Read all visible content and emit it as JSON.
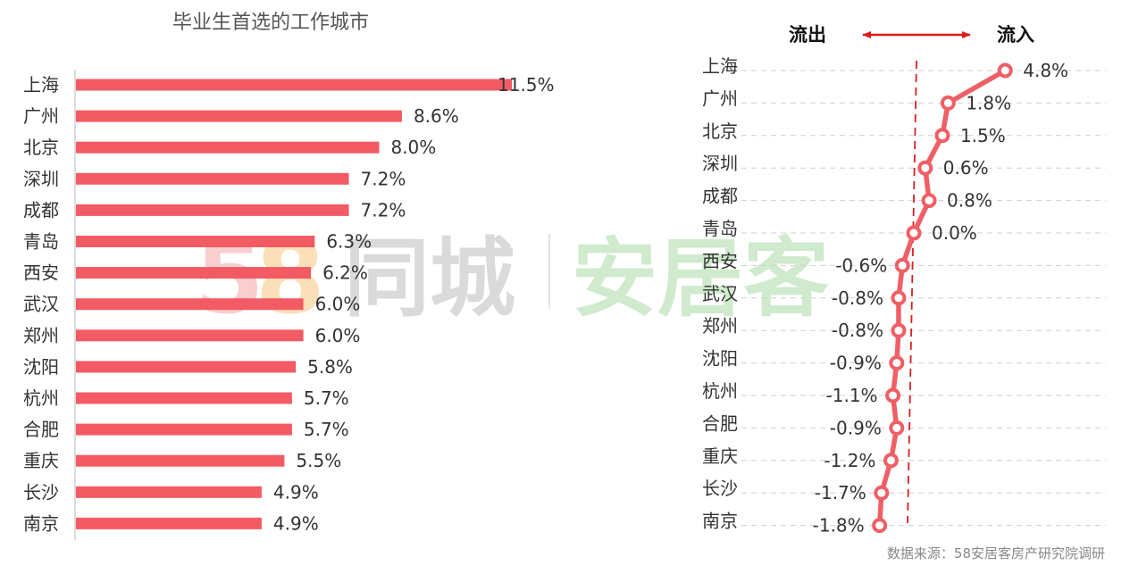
{
  "watermark": {
    "digits": "58",
    "brand1": "同城",
    "brand2": "安居客",
    "colors": {
      "digit5": "#f4a7a7",
      "digit8": "#f8c57f",
      "brand1": "#bdbdbd",
      "brand2": "#a9d9a5"
    }
  },
  "chart_data": [
    {
      "type": "bar",
      "orientation": "horizontal",
      "title": "毕业生首选的工作城市",
      "categories": [
        "上海",
        "广州",
        "北京",
        "深圳",
        "成都",
        "青岛",
        "西安",
        "武汉",
        "郑州",
        "沈阳",
        "杭州",
        "合肥",
        "重庆",
        "长沙",
        "南京"
      ],
      "values": [
        11.5,
        8.6,
        8.0,
        7.2,
        7.2,
        6.3,
        6.2,
        6.0,
        6.0,
        5.8,
        5.7,
        5.7,
        5.5,
        4.9,
        4.9
      ],
      "labels": [
        "11.5%",
        "8.6%",
        "8.0%",
        "7.2%",
        "7.2%",
        "6.3%",
        "6.2%",
        "6.0%",
        "6.0%",
        "5.8%",
        "5.7%",
        "5.7%",
        "5.5%",
        "4.9%",
        "4.9%"
      ],
      "xlim": [
        0,
        11.5
      ],
      "color": "#f25a64",
      "grid": false
    },
    {
      "type": "line",
      "orientation": "vertical",
      "header_left": "流出",
      "header_right": "流入",
      "categories": [
        "上海",
        "广州",
        "北京",
        "深圳",
        "成都",
        "青岛",
        "西安",
        "武汉",
        "郑州",
        "沈阳",
        "杭州",
        "合肥",
        "重庆",
        "长沙",
        "南京"
      ],
      "values": [
        4.8,
        1.8,
        1.5,
        0.6,
        0.8,
        0.0,
        -0.6,
        -0.8,
        -0.8,
        -0.9,
        -1.1,
        -0.9,
        -1.2,
        -1.7,
        -1.8
      ],
      "labels": [
        "4.8%",
        "1.8%",
        "1.5%",
        "0.6%",
        "0.8%",
        "0.0%",
        "-0.6%",
        "-0.8%",
        "-0.8%",
        "-0.9%",
        "-1.1%",
        "-0.9%",
        "-1.2%",
        "-1.7%",
        "-1.8%"
      ],
      "color": "#ef5f66",
      "arrow_color": "#e01a1a",
      "reference_line_color": "#d62020",
      "grid": true
    }
  ],
  "source": "数据来源：58安居客房产研究院调研"
}
